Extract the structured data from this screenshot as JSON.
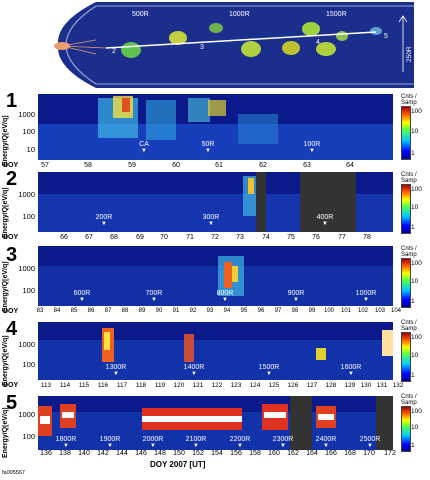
{
  "schematic": {
    "distance_labels": [
      "500R",
      "1000R",
      "1500R"
    ],
    "distance_subscript": "J",
    "segment_labels": [
      "2",
      "3",
      "4",
      "5"
    ],
    "scale_bar_label": "250R",
    "scale_bar_subscript": "J",
    "colors": {
      "background": "#1b2e8c",
      "boundary": "#c8d0e8",
      "trajectory": "#ffffff"
    }
  },
  "axis": {
    "ylabel": "Energy/Q[eV/q]",
    "doy_prefix": "DOY",
    "xlabel": "DOY 2007 [UT]",
    "colorbar_title": "Cnts / Samp"
  },
  "panels": [
    {
      "num": "1",
      "yticks": [
        "1000",
        "100",
        "10"
      ],
      "doy": [
        "57",
        "58",
        "59",
        "60",
        "61",
        "62",
        "63",
        "64"
      ],
      "cbar_ticks": [
        "100",
        "10",
        "1"
      ],
      "markers": [
        {
          "text": "CA"
        },
        {
          "text": "50R"
        },
        {
          "text": "100R"
        }
      ]
    },
    {
      "num": "2",
      "yticks": [
        "1000",
        "100"
      ],
      "doy": [
        "66",
        "67",
        "68",
        "69",
        "70",
        "71",
        "72",
        "73",
        "74",
        "75",
        "76",
        "77",
        "78"
      ],
      "cbar_ticks": [
        "100",
        "10",
        "1"
      ],
      "markers": [
        {
          "text": "200R"
        },
        {
          "text": "300R"
        },
        {
          "text": "400R"
        }
      ]
    },
    {
      "num": "3",
      "yticks": [
        "1000",
        "100"
      ],
      "doy": [
        "83",
        "84",
        "85",
        "86",
        "87",
        "88",
        "89",
        "90",
        "91",
        "92",
        "93",
        "94",
        "95",
        "96",
        "97",
        "98",
        "99",
        "100",
        "101",
        "102",
        "103",
        "104"
      ],
      "cbar_ticks": [
        "100",
        "10",
        "1"
      ],
      "markers": [
        {
          "text": "600R"
        },
        {
          "text": "700R"
        },
        {
          "text": "800R"
        },
        {
          "text": "900R"
        },
        {
          "text": "1000R"
        }
      ]
    },
    {
      "num": "4",
      "yticks": [
        "1000",
        "100"
      ],
      "doy": [
        "113",
        "114",
        "115",
        "116",
        "117",
        "118",
        "119",
        "120",
        "121",
        "122",
        "123",
        "124",
        "125",
        "126",
        "127",
        "128",
        "129",
        "130",
        "131",
        "132"
      ],
      "cbar_ticks": [
        "100",
        "10",
        "1"
      ],
      "markers": [
        {
          "text": "1300R"
        },
        {
          "text": "1400R"
        },
        {
          "text": "1500R"
        },
        {
          "text": "1600R"
        }
      ]
    },
    {
      "num": "5",
      "yticks": [
        "1000",
        "100"
      ],
      "doy": [
        "136",
        "138",
        "140",
        "142",
        "144",
        "146",
        "148",
        "150",
        "152",
        "154",
        "156",
        "158",
        "160",
        "162",
        "164",
        "166",
        "168",
        "170",
        "172"
      ],
      "cbar_ticks": [
        "100",
        "10",
        "1"
      ],
      "markers": [
        {
          "text": "1800R"
        },
        {
          "text": "1900R"
        },
        {
          "text": "2000R"
        },
        {
          "text": "2100R"
        },
        {
          "text": "2200R"
        },
        {
          "text": "2300R"
        },
        {
          "text": "2400R"
        },
        {
          "text": "2500R"
        }
      ]
    }
  ],
  "marker_subscript": "J",
  "figure_id": "fa005567"
}
